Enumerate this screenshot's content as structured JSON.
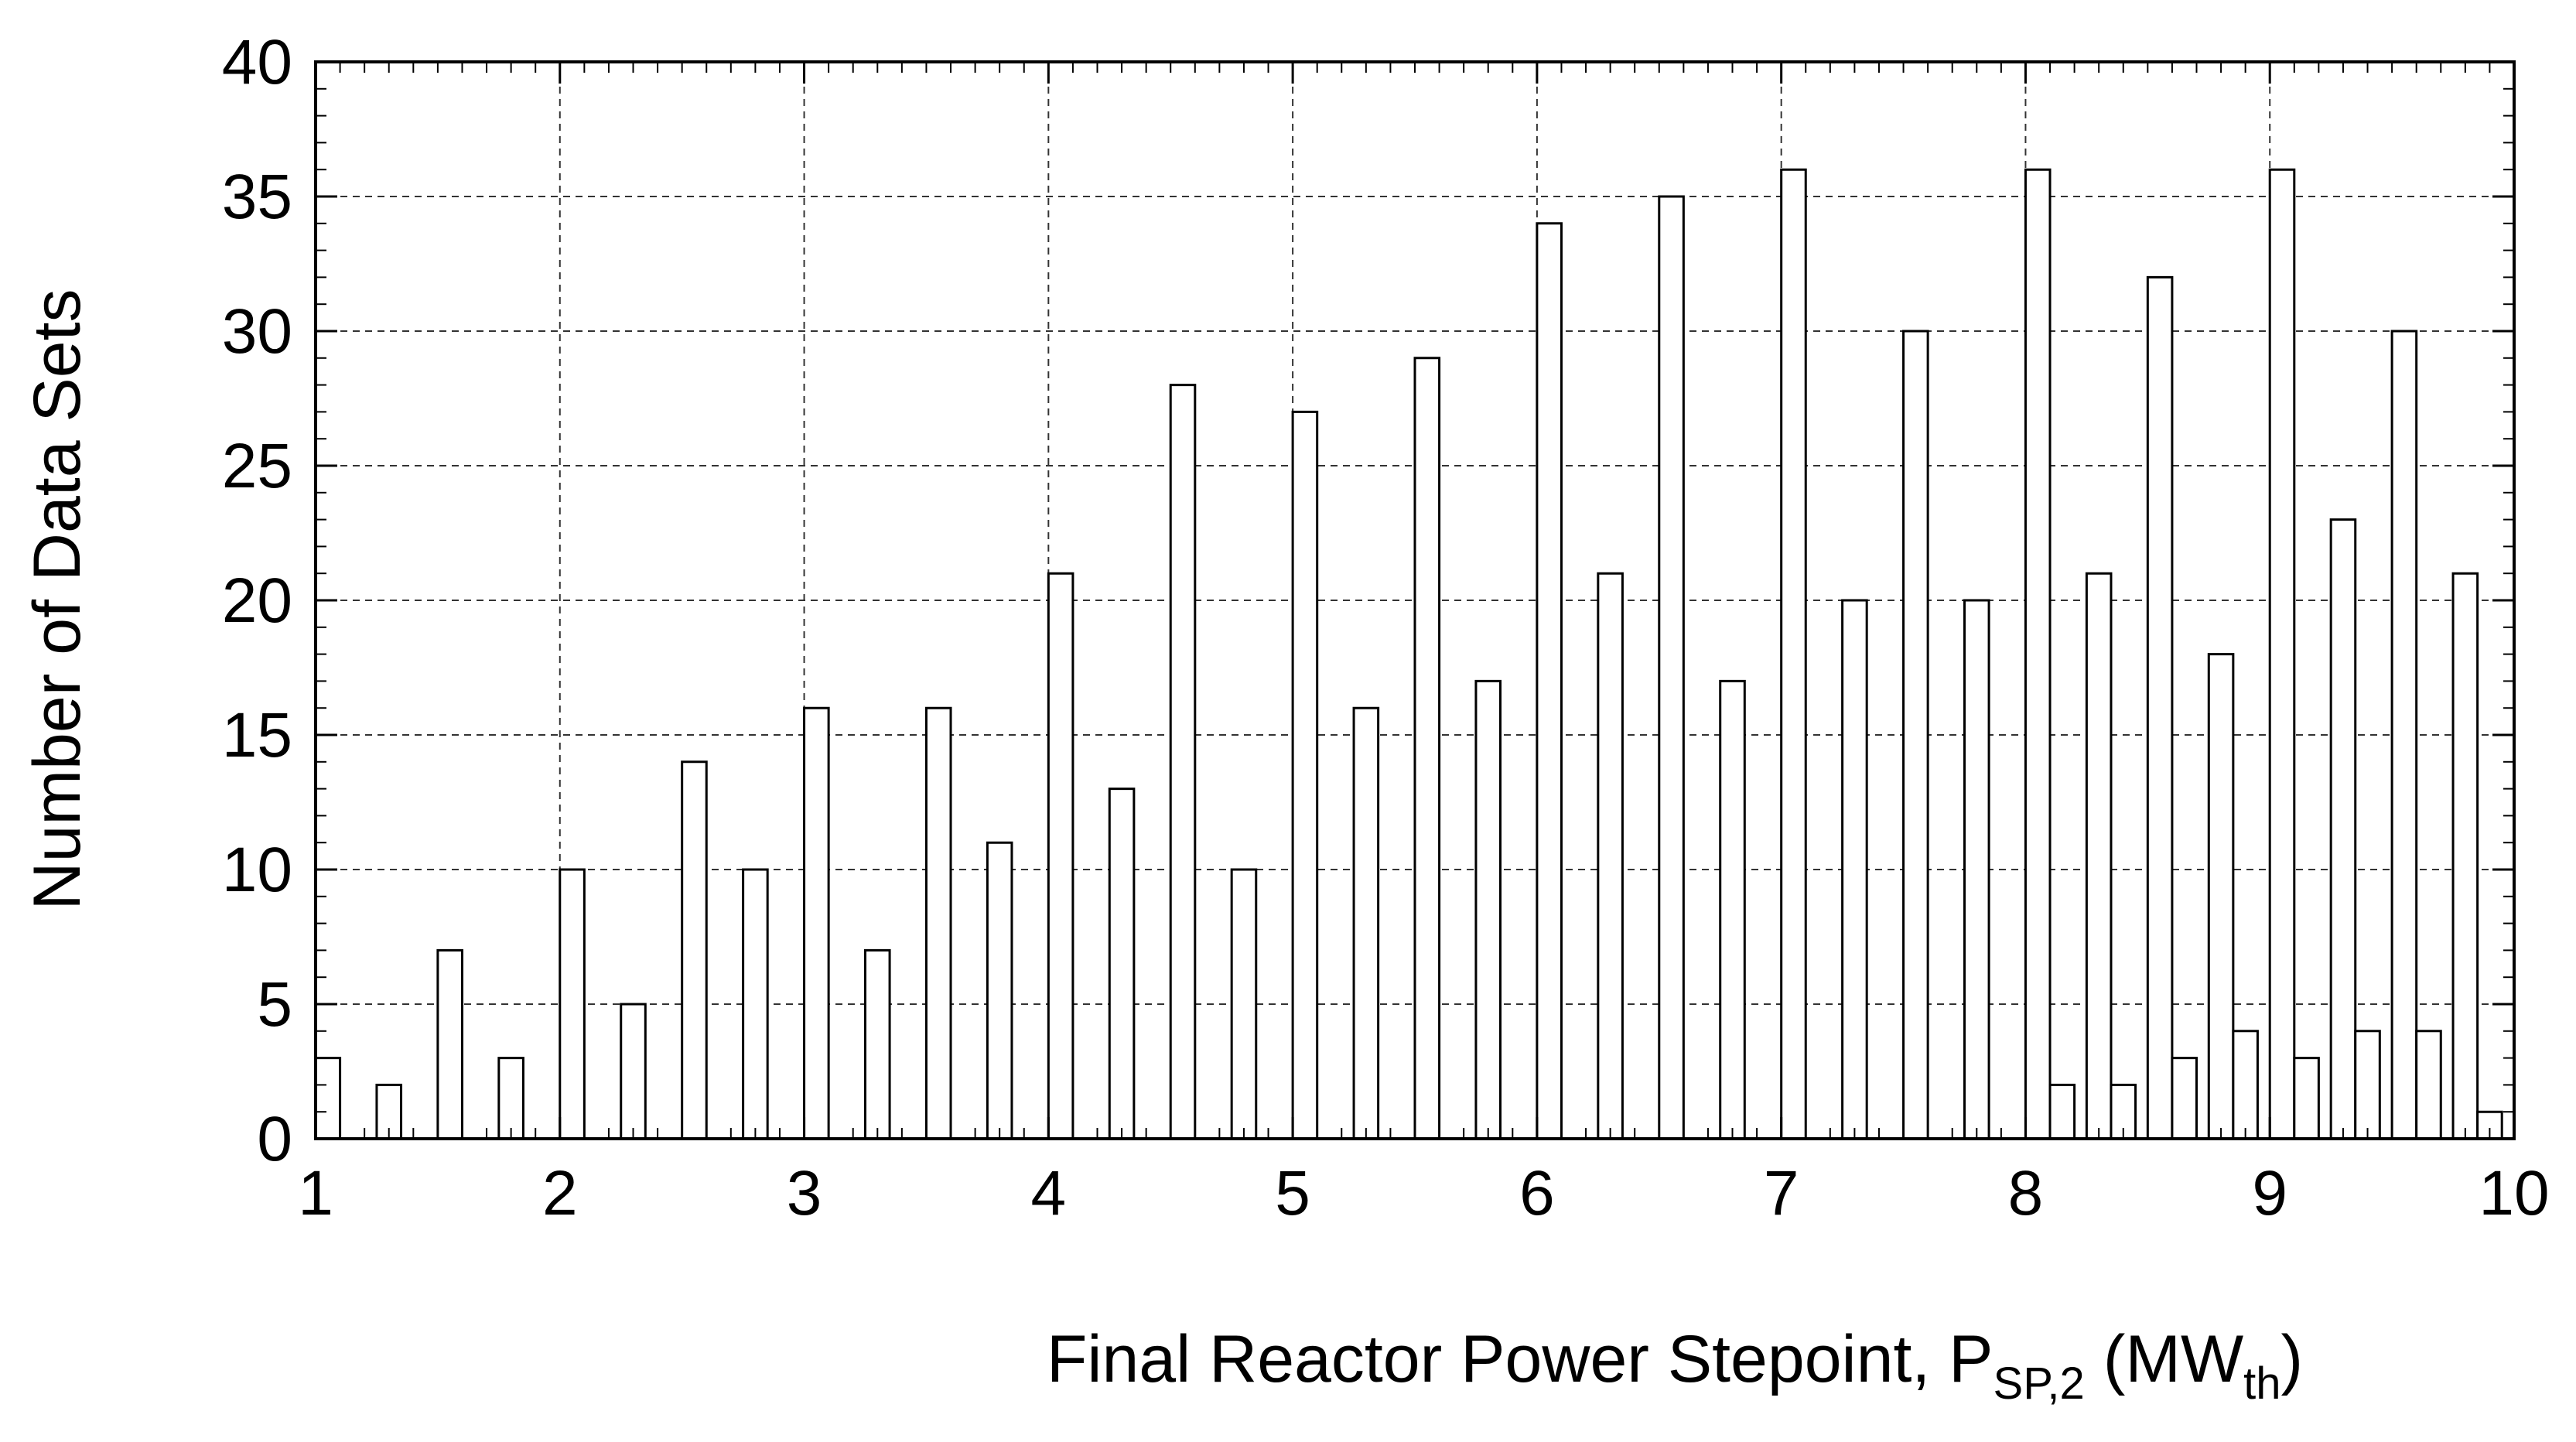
{
  "chart_data": {
    "type": "bar",
    "xlabel": {
      "prefix": "Final Reactor Power Stepoint, P",
      "sub1": "SP,2",
      "mid": " (MW",
      "sub2": "th",
      "suffix": ")"
    },
    "ylabel": "Number of Data Sets",
    "xlim": [
      1,
      10
    ],
    "ylim": [
      0,
      40
    ],
    "x_ticks": [
      "1",
      "2",
      "3",
      "4",
      "5",
      "6",
      "7",
      "8",
      "9",
      "10"
    ],
    "y_ticks": [
      "0",
      "5",
      "10",
      "15",
      "20",
      "25",
      "30",
      "35",
      "40"
    ],
    "grid": true,
    "bar_width": 0.1,
    "x": [
      1.0,
      1.25,
      1.5,
      1.75,
      2.0,
      2.25,
      2.5,
      2.75,
      3.0,
      3.25,
      3.5,
      3.75,
      4.0,
      4.25,
      4.5,
      4.75,
      5.0,
      5.25,
      5.5,
      5.75,
      6.0,
      6.25,
      6.5,
      6.75,
      7.0,
      7.25,
      7.5,
      7.75,
      8.0,
      8.1,
      8.25,
      8.35,
      8.5,
      8.6,
      8.75,
      8.85,
      9.0,
      9.1,
      9.25,
      9.35,
      9.5,
      9.6,
      9.75,
      9.85
    ],
    "values": [
      3,
      2,
      7,
      3,
      10,
      5,
      14,
      10,
      16,
      7,
      16,
      11,
      21,
      13,
      28,
      10,
      27,
      16,
      29,
      17,
      34,
      21,
      35,
      17,
      36,
      20,
      30,
      20,
      36,
      2,
      21,
      2,
      32,
      3,
      18,
      4,
      36,
      3,
      23,
      4,
      30,
      4,
      21,
      1
    ]
  }
}
